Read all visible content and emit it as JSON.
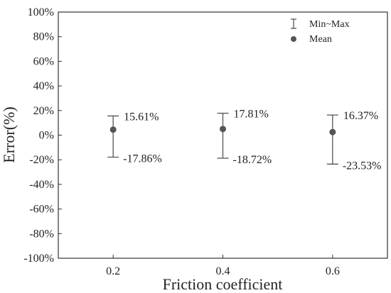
{
  "chart_data": {
    "type": "scatter",
    "xlabel": "Friction coefficient",
    "ylabel": "Error(%)",
    "x_ticks": [
      "0.2",
      "0.4",
      "0.6"
    ],
    "xlim": [
      0.1,
      0.7
    ],
    "ylim": [
      -100,
      100
    ],
    "y_ticks": [
      "-100%",
      "-80%",
      "-60%",
      "-40%",
      "-20%",
      "0%",
      "20%",
      "40%",
      "60%",
      "80%",
      "100%"
    ],
    "grid": false,
    "legend": {
      "placement": "top-right",
      "entries": [
        {
          "label": "Min~Max",
          "marker": "errorbar"
        },
        {
          "label": "Mean",
          "marker": "dot"
        }
      ]
    },
    "points": [
      {
        "x": 0.2,
        "mean": 4.5,
        "min": -17.86,
        "max": 15.61,
        "max_label": "15.61%",
        "min_label": "-17.86%"
      },
      {
        "x": 0.4,
        "mean": 5.0,
        "min": -18.72,
        "max": 17.81,
        "max_label": "17.81%",
        "min_label": "-18.72%"
      },
      {
        "x": 0.6,
        "mean": 2.5,
        "min": -23.53,
        "max": 16.37,
        "max_label": "16.37%",
        "min_label": "-23.53%"
      }
    ],
    "colors": {
      "marker": "#555555",
      "errorbar": "#555555",
      "axis": "#333333"
    }
  }
}
